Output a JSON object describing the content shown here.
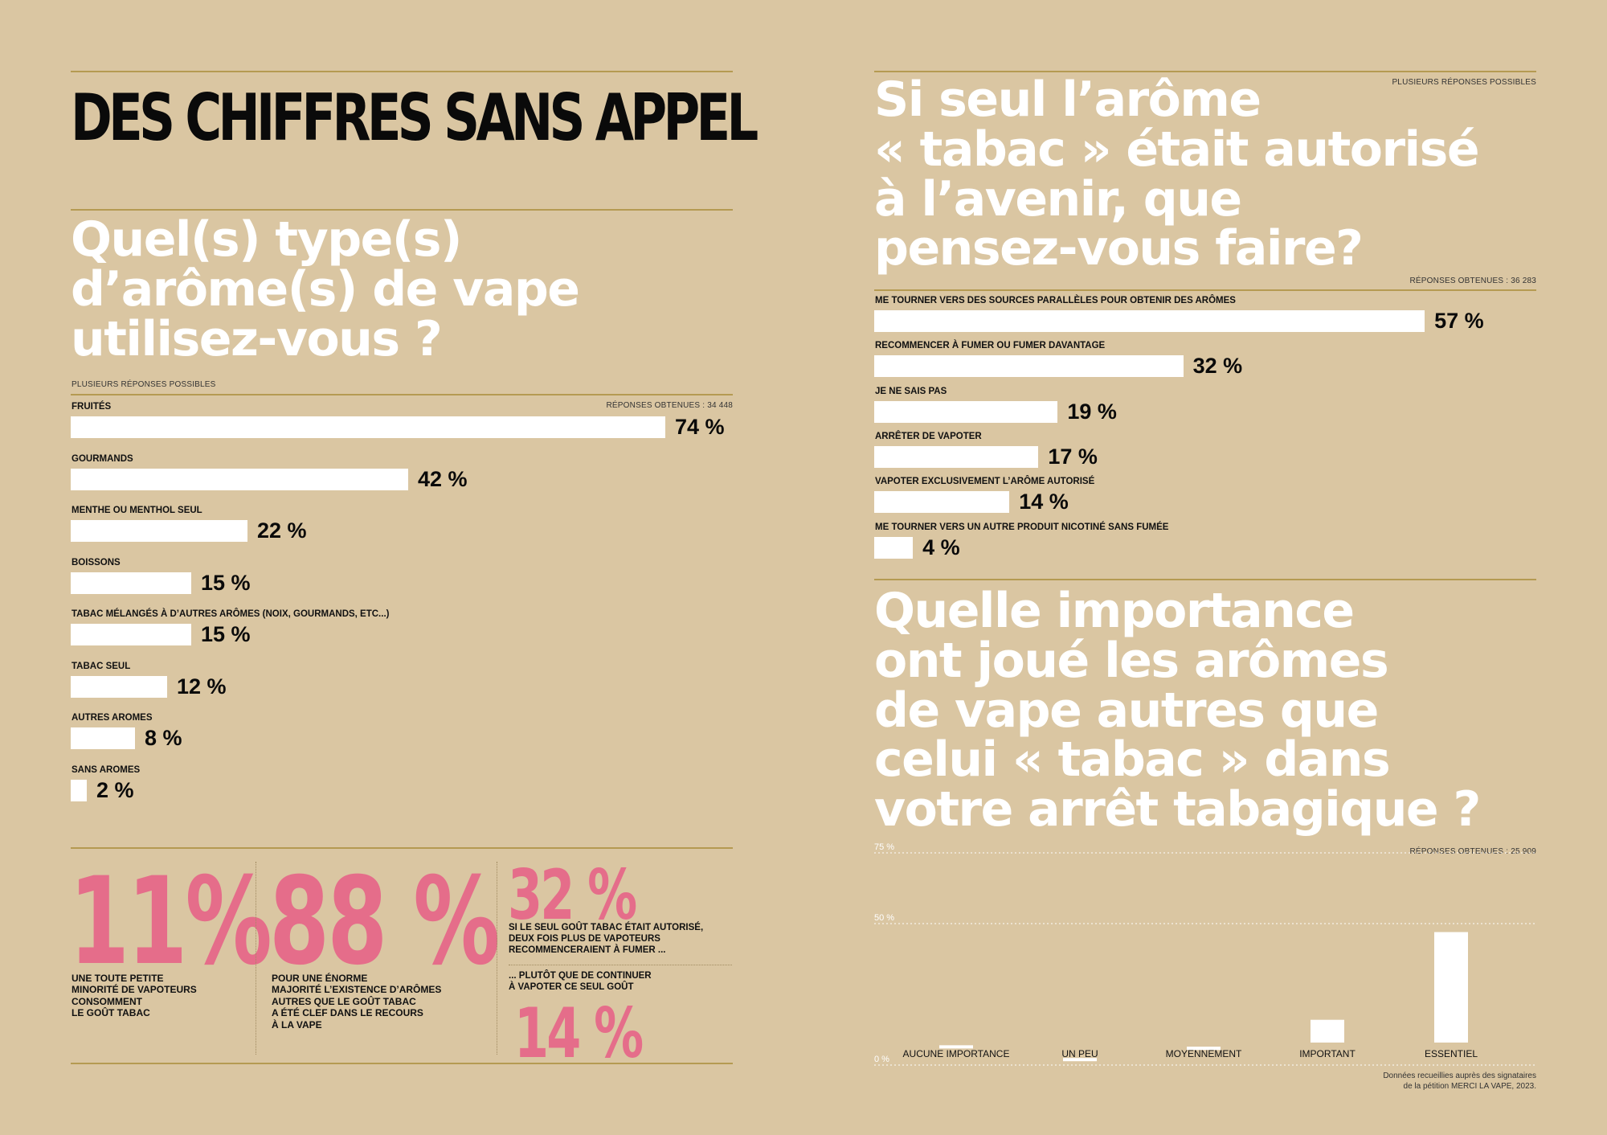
{
  "left": {
    "title": "DES CHIFFRES SANS APPEL",
    "question": "Quel(s) type(s)\nd’arôme(s) de vape\nutilisez-vous ?",
    "note": "PLUSIEURS RÉPONSES POSSIBLES",
    "responses": "RÉPONSES OBTENUES : 34 448",
    "stats": [
      {
        "value": "11%",
        "text": "UNE TOUTE PETITE\nMINORITÉ DE VAPOTEURS\nCONSOMMENT\nLE GOÛT TABAC"
      },
      {
        "value": "88 %",
        "text": "POUR UNE ÉNORME\nMAJORITÉ L’EXISTENCE D’ARÔMES\nAUTRES QUE LE GOÛT TABAC\nA ÉTÉ CLEF DANS LE RECOURS\nÀ LA VAPE"
      },
      {
        "value": "32 %",
        "text": "SI LE SEUL GOÛT TABAC ÉTAIT AUTORISÉ,\nDEUX FOIS PLUS DE VAPOTEURS\nRECOMMENCERAIENT À FUMER ..."
      },
      {
        "value": "14 %",
        "text": "... PLUTÔT QUE DE CONTINUER\nÀ VAPOTER CE SEUL GOÛT"
      }
    ]
  },
  "right": {
    "note": "PLUSIEURS RÉPONSES POSSIBLES",
    "question1": "Si seul l’arôme\n« tabac » était autorisé\nà l’avenir, que\npensez-vous faire?",
    "responses1": "RÉPONSES OBTENUES : 36 283",
    "question2": "Quelle importance\nont joué les arômes\nde vape autres que\ncelui « tabac » dans\nvotre arrêt tabagique ?",
    "responses2": "RÉPONSES OBTENUES : 25 909",
    "footnote": "Données recueillies auprès des signataires\nde la pétition MERCI LA VAPE, 2023."
  },
  "chart_data": [
    {
      "type": "bar",
      "orientation": "horizontal",
      "categories": [
        "FRUITÉS",
        "GOURMANDS",
        "MENTHE OU MENTHOL SEUL",
        "BOISSONS",
        "TABAC MÉLANGÉS À D’AUTRES ARÔMES (NOIX, GOURMANDS, ETC...)",
        "TABAC SEUL",
        "AUTRES AROMES",
        "SANS AROMES"
      ],
      "values": [
        74,
        42,
        22,
        15,
        15,
        12,
        8,
        2
      ],
      "value_labels": [
        "74 %",
        "42 %",
        "22 %",
        "15 %",
        "15 %",
        "12 %",
        "8 %",
        "2 %"
      ],
      "xlim": [
        0,
        100
      ],
      "colors": {
        "bar": "#ffffff"
      }
    },
    {
      "type": "bar",
      "orientation": "horizontal",
      "categories": [
        "ME TOURNER VERS DES SOURCES PARALLÈLES POUR OBTENIR DES ARÔMES",
        "RECOMMENCER À FUMER OU FUMER DAVANTAGE",
        "JE NE SAIS PAS",
        "ARRÊTER DE VAPOTER",
        "VAPOTER EXCLUSIVEMENT L’ARÔME AUTORISÉ",
        "ME TOURNER VERS UN AUTRE PRODUIT NICOTINÉ SANS FUMÉE"
      ],
      "values": [
        57,
        32,
        19,
        17,
        14,
        4
      ],
      "value_labels": [
        "57 %",
        "32 %",
        "19 %",
        "17 %",
        "14 %",
        "4 %"
      ],
      "xlim": [
        0,
        100
      ],
      "colors": {
        "bar": "#ffffff"
      }
    },
    {
      "type": "bar",
      "orientation": "vertical",
      "categories": [
        "AUCUNE IMPORTANCE",
        "UN PEU",
        "MOYENNEMENT",
        "IMPORTANT",
        "ESSENTIEL"
      ],
      "values": [
        7,
        2.5,
        6.5,
        16,
        47
      ],
      "yticks": [
        "0 %",
        "50 %",
        "75 %"
      ],
      "ytick_values": [
        0,
        50,
        75
      ],
      "ylim": [
        0,
        75
      ],
      "grid": true,
      "colors": {
        "bar": "#ffffff"
      }
    }
  ]
}
